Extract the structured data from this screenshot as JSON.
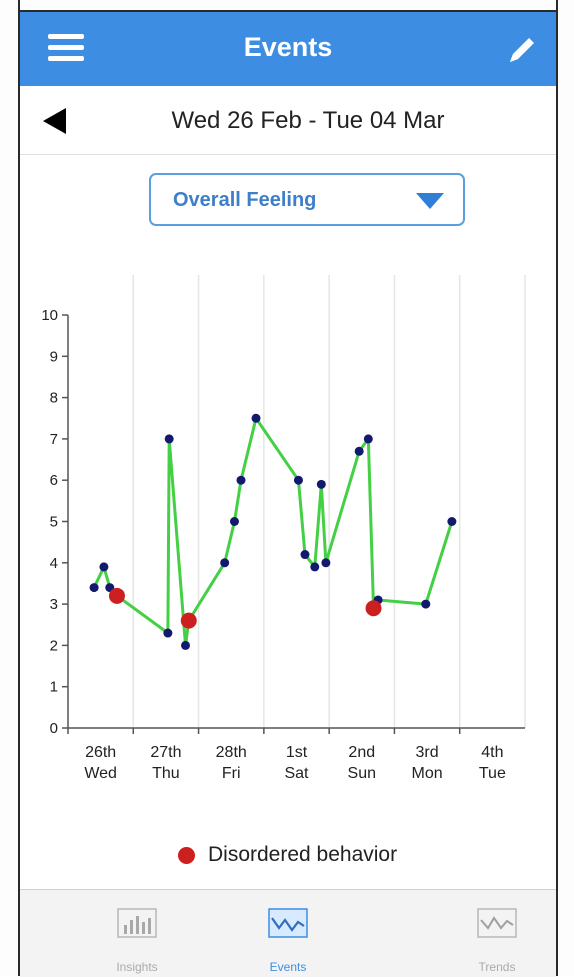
{
  "nav": {
    "title": "Events"
  },
  "date_range": "Wed 26 Feb - Tue 04 Mar",
  "selector": {
    "value": "Overall Feeling"
  },
  "chart_data": {
    "type": "line",
    "title": "",
    "xlabel": "",
    "ylabel": "",
    "ylim": [
      0,
      10
    ],
    "xlim": [
      0,
      7
    ],
    "y_ticks": [
      "0",
      "1",
      "2",
      "3",
      "4",
      "5",
      "6",
      "7",
      "8",
      "9",
      "10"
    ],
    "x_categories": [
      {
        "day": "26th",
        "weekday": "Wed"
      },
      {
        "day": "27th",
        "weekday": "Thu"
      },
      {
        "day": "28th",
        "weekday": "Fri"
      },
      {
        "day": "1st",
        "weekday": "Sat"
      },
      {
        "day": "2nd",
        "weekday": "Sun"
      },
      {
        "day": "3rd",
        "weekday": "Mon"
      },
      {
        "day": "4th",
        "weekday": "Tue"
      }
    ],
    "grid": "vertical",
    "line_color": "#44d044",
    "point_color": "#131a6e",
    "highlight_color": "#cc2020",
    "points": [
      {
        "x": 0.4,
        "y": 3.4
      },
      {
        "x": 0.55,
        "y": 3.9
      },
      {
        "x": 0.64,
        "y": 3.4
      },
      {
        "x": 0.75,
        "y": 3.2,
        "disordered": true
      },
      {
        "x": 1.53,
        "y": 2.3
      },
      {
        "x": 1.55,
        "y": 7.0
      },
      {
        "x": 1.8,
        "y": 2.0
      },
      {
        "x": 1.85,
        "y": 2.6,
        "disordered": true
      },
      {
        "x": 2.4,
        "y": 4.0
      },
      {
        "x": 2.55,
        "y": 5.0
      },
      {
        "x": 2.65,
        "y": 6.0
      },
      {
        "x": 2.88,
        "y": 7.5
      },
      {
        "x": 3.53,
        "y": 6.0
      },
      {
        "x": 3.63,
        "y": 4.2
      },
      {
        "x": 3.78,
        "y": 3.9
      },
      {
        "x": 3.88,
        "y": 5.9
      },
      {
        "x": 3.95,
        "y": 4.0
      },
      {
        "x": 4.46,
        "y": 6.7
      },
      {
        "x": 4.6,
        "y": 7.0
      },
      {
        "x": 4.75,
        "y": 3.1
      },
      {
        "x": 4.68,
        "y": 2.9,
        "disordered": true
      },
      {
        "x": 5.48,
        "y": 3.0
      },
      {
        "x": 5.88,
        "y": 5.0
      }
    ],
    "legend": [
      {
        "label": "Disordered behavior",
        "color": "#cc2020"
      }
    ]
  },
  "tabs": [
    {
      "label": "Insights",
      "icon": "bar-chart-icon",
      "active": false
    },
    {
      "label": "Events",
      "icon": "line-chart-icon",
      "active": true
    },
    {
      "label": "Trends",
      "icon": "trend-icon",
      "active": false
    }
  ]
}
